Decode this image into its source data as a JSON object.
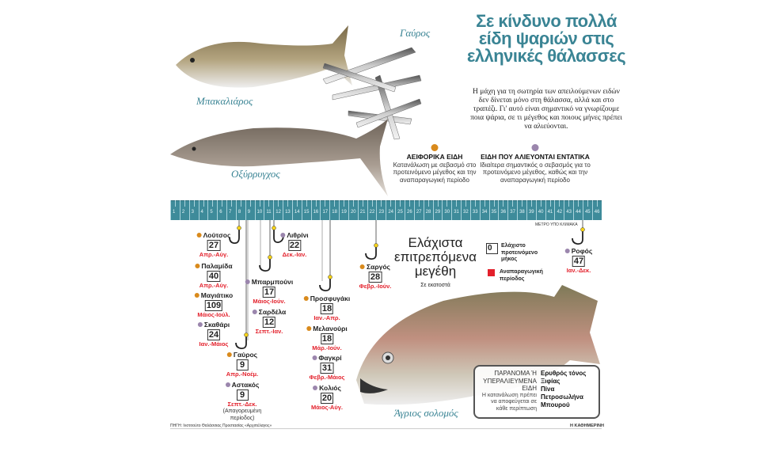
{
  "title": "Σε κίνδυνο πολλά είδη ψαριών στις ελληνικές θάλασσες",
  "intro": "Η μάχη για τη σωτηρία των απειλούμενων ειδών δεν δίνεται μόνο στη θάλασσα, αλλά και στο τραπέζι. Γι' αυτό είναι σημαντικό να γνωρίζουμε ποια ψάρια, σε τι μέγεθος και ποιους μήνες πρέπει να αλιεύονται.",
  "colors": {
    "accent": "#3a8494",
    "sustainable": "#d98a1c",
    "intensive": "#9b86ad",
    "period": "#e3202b"
  },
  "categories": [
    {
      "title": "ΑΕΙΦΟΡΙΚΑ ΕΙΔΗ",
      "text": "Κατανάλωση με σεβασμό στο προτεινόμενο μέγεθος και την αναπαραγωγική περίοδο"
    },
    {
      "title": "ΕΙΔΗ ΠΟΥ ΑΛΙΕΥΟΝΤΑΙ ΕΝΤΑΤΙΚΑ",
      "text": "Ιδιαίτερα σημαντικός ο σεβασμός για το προτεινόμενο μέγεθος, καθώς και την αναπαραγωγική περίοδο"
    }
  ],
  "photo_labels": {
    "cod": "Μπακαλιάρος",
    "anchovy": "Γαύρος",
    "sturgeon": "Οξύρρυγχος",
    "salmon": "Άγριος σολομός"
  },
  "ruler": {
    "ticks": [
      1,
      2,
      3,
      4,
      5,
      6,
      7,
      8,
      9,
      10,
      11,
      12,
      13,
      14,
      15,
      16,
      17,
      18,
      19,
      20,
      21,
      22,
      23,
      24,
      25,
      26,
      27,
      28,
      29,
      30,
      31,
      32,
      33,
      34,
      35,
      36,
      37,
      38,
      39,
      40,
      41,
      42,
      43,
      44,
      45,
      46
    ],
    "scale_note": "ΜΕΤΡΟ ΥΠΟ ΚΛΙΜΑΚΑ"
  },
  "min_sizes": {
    "title": "Ελάχιστα επιτρεπόμενα μεγέθη",
    "subtitle": "Σε εκατοστά",
    "legend": {
      "box_sample": "0",
      "box_label": "Ελάχιστο προτεινόμενο μήκος",
      "period_label": "Αναπαραγωγική περίοδος"
    }
  },
  "fish": [
    {
      "name": "Λούτσος",
      "size": "27",
      "period": "Απρ.-Αύγ.",
      "category": "sustainable"
    },
    {
      "name": "Παλαμίδα",
      "size": "40",
      "period": "Απρ.-Αύγ.",
      "category": "sustainable"
    },
    {
      "name": "Μαγιάτικο",
      "size": "109",
      "period": "Μάιος-Ιούλ.",
      "category": "sustainable"
    },
    {
      "name": "Σκαθάρι",
      "size": "24",
      "period": "Ιαν.-Μάιος",
      "category": "intensive"
    },
    {
      "name": "Γαύρος",
      "size": "9",
      "period": "Απρ.-Νοέμ.",
      "category": "sustainable"
    },
    {
      "name": "Αστακός",
      "size": "9",
      "period": "Σεπτ.-Δεκ.",
      "note": "(Απαγορευμένη περίοδος)",
      "category": "intensive"
    },
    {
      "name": "Λιθρίνι",
      "size": "22",
      "period": "Δεκ.-Ιαν.",
      "category": "intensive"
    },
    {
      "name": "Μπαρμπούνι",
      "size": "17",
      "period": "Μάιος-Ιούν.",
      "category": "intensive"
    },
    {
      "name": "Σαρδέλα",
      "size": "12",
      "period": "Σεπτ.-Ιαν.",
      "category": "intensive"
    },
    {
      "name": "Προσφυγάκι",
      "size": "18",
      "period": "Ιαν.-Απρ.",
      "category": "sustainable"
    },
    {
      "name": "Μελανούρι",
      "size": "18",
      "period": "Μάρ.-Ιούν.",
      "category": "sustainable"
    },
    {
      "name": "Φαγκρί",
      "size": "31",
      "period": "Φεβρ.-Μάιος",
      "category": "intensive"
    },
    {
      "name": "Κολιός",
      "size": "20",
      "period": "Μάιος-Αύγ.",
      "category": "intensive"
    },
    {
      "name": "Σαργός",
      "size": "28",
      "period": "Φεβρ.-Ιούν.",
      "category": "sustainable"
    },
    {
      "name": "Ροφός",
      "size": "47",
      "period": "Ιαν.-Δεκ.",
      "category": "intensive"
    }
  ],
  "illegal": {
    "heading": "ΠΑΡΑΝΟΜΑ Ή ΥΠΕΡΑΛΙΕΥΜΕΝΑ ΕΙΔΗ",
    "text": "Η κατανάλωση πρέπει να αποφεύγεται σε κάθε περίπτωση",
    "species": [
      "Ερυθρός τόνος",
      "Ξιφίας",
      "Πίνα",
      "Πετροσωλήνα",
      "Μπουρού"
    ]
  },
  "source": "ΠΗΓΗ: Ινστιτούτο Θαλάσσιας Προστασίας «Αρχιπέλαγος»",
  "brand": "Η ΚΑΘΗΜΕΡΙΝΗ"
}
